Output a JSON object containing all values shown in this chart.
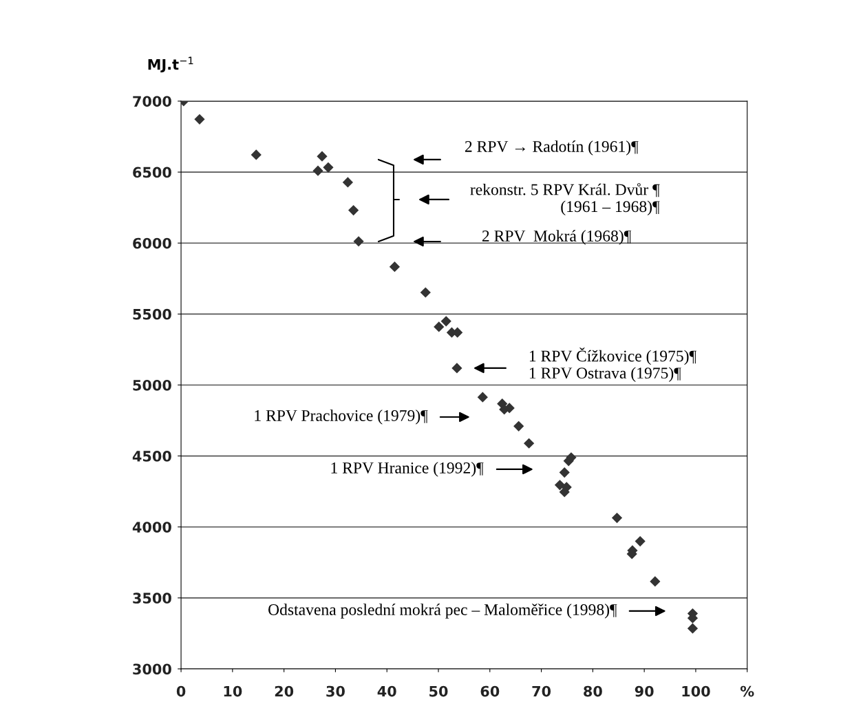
{
  "chart_data": {
    "type": "scatter",
    "ylabel": "MJ.t$^{−1}$",
    "x": [
      0.5,
      3.6,
      14.6,
      27.4,
      26.6,
      28.6,
      32.4,
      33.5,
      34.5,
      41.5,
      47.5,
      50.1,
      51.5,
      52.6,
      53.7,
      53.6,
      58.6,
      62.4,
      62.8,
      63.8,
      65.6,
      67.6,
      75.8,
      75.3,
      74.5,
      73.6,
      74.9,
      74.5,
      84.7,
      89.2,
      87.7,
      87.6,
      92.1,
      99.4,
      99.4,
      99.4
    ],
    "series": [
      {
        "color": "#333333",
        "values": [
          7000,
          6872,
          6622,
          6611,
          6509,
          6533,
          6428,
          6231,
          6012,
          5833,
          5652,
          5410,
          5449,
          5370,
          5370,
          5119,
          4914,
          4868,
          4828,
          4838,
          4710,
          4589,
          4489,
          4465,
          4384,
          4295,
          4280,
          4246,
          4064,
          3899,
          3834,
          3810,
          3616,
          3390,
          3358,
          3285
        ]
      }
    ],
    "xlim": [
      0,
      110
    ],
    "xticks": [
      0,
      10,
      20,
      30,
      40,
      50,
      60,
      70,
      80,
      90,
      100,
      {
        "value": 110,
        "label": "%"
      }
    ],
    "ylim": [
      3000,
      7000
    ],
    "yticks": [
      3000,
      3500,
      4000,
      4500,
      5000,
      5500,
      6000,
      6500,
      7000
    ],
    "grid": "y",
    "marker": "diamond",
    "legend": false,
    "annotations": [
      "2 RPV → Radotín (1961)¶",
      "rekonstr. 5 RPV Král. Dvůr ¶\n(1961 – 1968)¶",
      "2 RPV  Mokrá (1968)¶",
      "1 RPV Čížkovice (1975)¶\n1 RPV Ostrava (1975)¶",
      "1 RPV Prachovice (1979)¶",
      "1 RPV Hranice (1992)¶",
      "Odstavena poslední mokrá pec – Maloměřice (1998)¶"
    ]
  }
}
